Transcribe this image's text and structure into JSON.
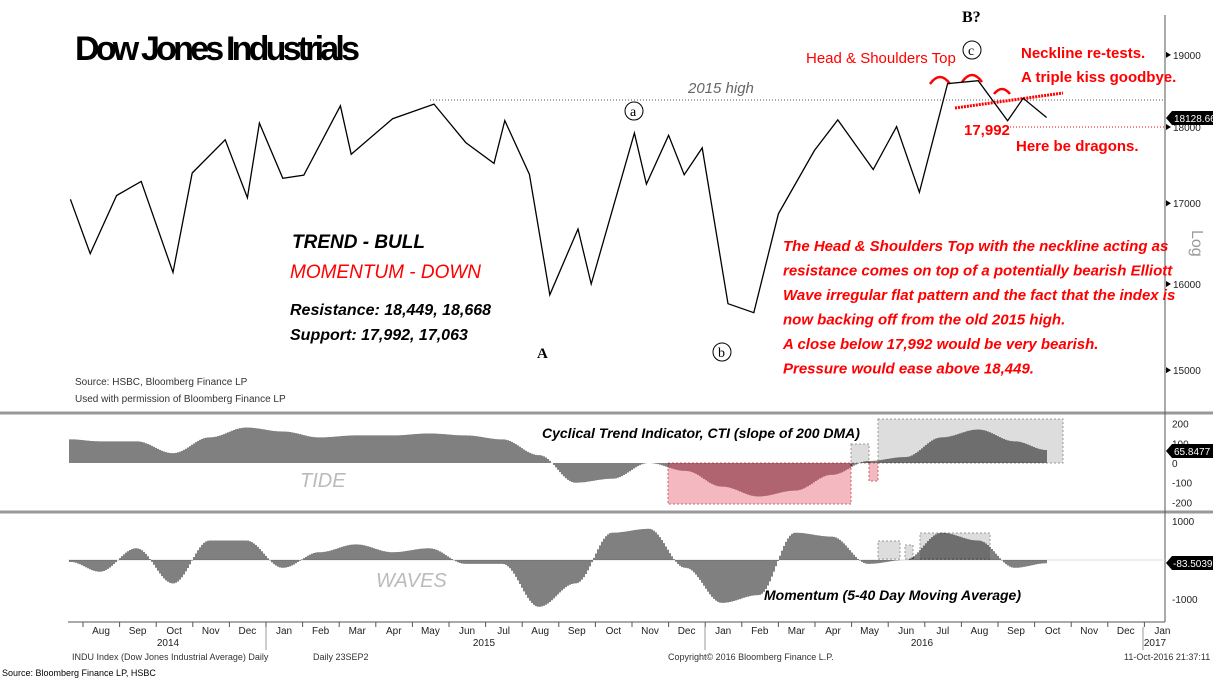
{
  "chart_data": [
    {
      "type": "line",
      "title": "Dow Jones Industrials",
      "ylabel": "Log",
      "yscale": "log",
      "ylim": [
        14700,
        19600
      ],
      "yticks": [
        15000,
        16000,
        17000,
        18000,
        19000
      ],
      "last_value_label": "18128.66",
      "x": [
        "2014-07-21",
        "2014-08-07",
        "2014-08-29",
        "2014-09-19",
        "2014-10-15",
        "2014-10-31",
        "2014-11-28",
        "2014-12-16",
        "2014-12-26",
        "2015-01-15",
        "2015-02-02",
        "2015-03-02",
        "2015-03-11",
        "2015-04-15",
        "2015-05-19",
        "2015-06-15",
        "2015-07-08",
        "2015-07-17",
        "2015-08-07",
        "2015-08-24",
        "2015-09-17",
        "2015-09-28",
        "2015-11-03",
        "2015-11-13",
        "2015-12-01",
        "2015-12-14",
        "2015-12-29",
        "2016-01-20",
        "2016-02-11",
        "2016-03-01",
        "2016-03-31",
        "2016-04-20",
        "2016-05-19",
        "2016-06-08",
        "2016-06-27",
        "2016-07-20",
        "2016-08-15",
        "2016-09-09",
        "2016-09-22",
        "2016-10-11"
      ],
      "values": [
        17050,
        16370,
        17098,
        17280,
        16140,
        17390,
        17828,
        17070,
        18053,
        17320,
        17361,
        18288,
        17635,
        18112,
        18312,
        17791,
        17515,
        18086,
        17373,
        15871,
        16674,
        16001,
        17918,
        17245,
        17888,
        17368,
        17720,
        15766,
        15660,
        16865,
        17685,
        18096,
        17435,
        18005,
        17140,
        18595,
        18636,
        18085,
        18392,
        18128.66
      ],
      "annotations": {
        "high_label": "2015 high",
        "hs_title": "Head & Shoulders Top",
        "b_label": "B?",
        "c_label": "c",
        "a_small": "a",
        "a_big": "A",
        "b_small": "b",
        "neckline": "Neckline re-tests.",
        "kiss": "A triple kiss goodbye.",
        "support_val": "17,992",
        "dragons": "Here be dragons.",
        "trend": "TREND - BULL",
        "momentum": "MOMENTUM - DOWN",
        "resistance": "Resistance: 18,449, 18,668",
        "support": "Support: 17,992, 17,063",
        "commentary": [
          "The Head & Shoulders Top with the neckline acting as",
          "resistance comes on top of a potentially bearish Elliott",
          "Wave irregular flat pattern and the fact that the index is",
          "now backing off from the old 2015 high.",
          "A close below 17,992 would be very bearish.",
          "Pressure would ease above 18,449."
        ],
        "source1": "Source: HSBC, Bloomberg Finance LP",
        "source2": "Used with permission of Bloomberg Finance LP"
      }
    },
    {
      "type": "bar",
      "title": "Cyclical Trend Indicator, CTI (slope of 200 DMA)",
      "panel_label": "TIDE",
      "ylim": [
        -220,
        220
      ],
      "yticks": [
        200,
        100,
        0,
        -100,
        -200
      ],
      "last_value_label": "65.8477",
      "x": [
        "2014-07-21",
        "2014-08-15",
        "2014-09-15",
        "2014-10-15",
        "2014-11-15",
        "2014-12-15",
        "2015-01-15",
        "2015-02-15",
        "2015-03-15",
        "2015-04-15",
        "2015-05-15",
        "2015-06-15",
        "2015-07-15",
        "2015-08-15",
        "2015-09-15",
        "2015-10-15",
        "2015-11-15",
        "2015-12-15",
        "2016-01-15",
        "2016-02-15",
        "2016-03-15",
        "2016-04-15",
        "2016-05-15",
        "2016-06-15",
        "2016-07-15",
        "2016-08-15",
        "2016-09-15",
        "2016-10-11"
      ],
      "values": [
        120,
        110,
        110,
        50,
        130,
        180,
        160,
        130,
        140,
        140,
        150,
        140,
        120,
        40,
        -100,
        -80,
        0,
        -40,
        -120,
        -170,
        -140,
        -60,
        10,
        30,
        130,
        170,
        110,
        66
      ]
    },
    {
      "type": "bar",
      "title": "Momentum (5-40 Day Moving Average)",
      "panel_label": "WAVES",
      "ylim": [
        -1400,
        1200
      ],
      "yticks": [
        1000,
        -1000
      ],
      "last_value_label": "-83.5039",
      "x": [
        "2014-07-21",
        "2014-08-15",
        "2014-09-15",
        "2014-10-15",
        "2014-11-15",
        "2014-12-15",
        "2015-01-15",
        "2015-02-15",
        "2015-03-15",
        "2015-04-15",
        "2015-05-15",
        "2015-06-15",
        "2015-07-15",
        "2015-08-15",
        "2015-09-15",
        "2015-10-15",
        "2015-11-15",
        "2015-12-15",
        "2016-01-15",
        "2016-02-15",
        "2016-03-15",
        "2016-04-15",
        "2016-05-15",
        "2016-06-15",
        "2016-07-15",
        "2016-08-15",
        "2016-09-15",
        "2016-10-11"
      ],
      "values": [
        -50,
        -300,
        300,
        -600,
        500,
        500,
        -200,
        200,
        400,
        200,
        300,
        -100,
        -100,
        -1200,
        -600,
        700,
        800,
        -200,
        -1100,
        -900,
        700,
        600,
        -100,
        0,
        700,
        500,
        -200,
        -84
      ]
    }
  ],
  "x_axis": {
    "months": [
      "Aug",
      "Sep",
      "Oct",
      "Nov",
      "Dec",
      "Jan",
      "Feb",
      "Mar",
      "Apr",
      "May",
      "Jun",
      "Jul",
      "Aug",
      "Sep",
      "Oct",
      "Nov",
      "Dec",
      "Jan",
      "Feb",
      "Mar",
      "Apr",
      "May",
      "Jun",
      "Jul",
      "Aug",
      "Sep",
      "Oct",
      "Nov",
      "Dec",
      "Jan"
    ],
    "years": [
      "2014",
      "2015",
      "2016",
      "2017"
    ]
  },
  "footer": {
    "index": "INDU Index (Dow Jones Industrial Average) Daily",
    "period": "Daily 23SEP2",
    "copyright": "Copyright© 2016 Bloomberg Finance L.P.",
    "timestamp": "11-Oct-2016 21:37:11",
    "source": "Source: Bloomberg Finance LP, HSBC"
  },
  "colors": {
    "annotation": "#ff0000",
    "line": "#000000",
    "tide_neg_box": "#f4b8c0",
    "box": "#d9d9d9"
  }
}
